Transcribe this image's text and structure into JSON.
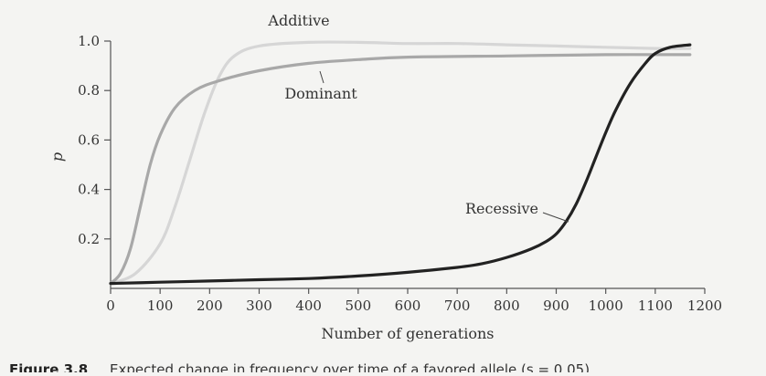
{
  "chart_data": {
    "type": "line",
    "title": "",
    "xlabel": "Number of generations",
    "ylabel": "p",
    "xlim": [
      0,
      1200
    ],
    "ylim": [
      0,
      1.0
    ],
    "x_ticks": [
      "0",
      "100",
      "200",
      "300",
      "400",
      "500",
      "600",
      "700",
      "800",
      "900",
      "1000",
      "1100",
      "1200"
    ],
    "y_ticks": [
      "0.2",
      "0.4",
      "0.6",
      "0.8",
      "1.0"
    ],
    "grid": false,
    "series": [
      {
        "name": "Additive",
        "color": "#d6d6d6",
        "x": [
          0,
          50,
          100,
          130,
          160,
          190,
          220,
          250,
          300,
          400,
          500,
          600,
          700,
          800,
          900,
          1000,
          1100,
          1170
        ],
        "y": [
          0.02,
          0.06,
          0.18,
          0.33,
          0.52,
          0.71,
          0.86,
          0.94,
          0.98,
          0.995,
          0.995,
          0.99,
          0.99,
          0.985,
          0.98,
          0.975,
          0.97,
          0.97
        ]
      },
      {
        "name": "Dominant",
        "color": "#a8a8a8",
        "x": [
          0,
          20,
          40,
          60,
          80,
          100,
          130,
          170,
          220,
          300,
          400,
          500,
          600,
          800,
          1000,
          1170
        ],
        "y": [
          0.02,
          0.06,
          0.16,
          0.33,
          0.5,
          0.62,
          0.73,
          0.8,
          0.84,
          0.88,
          0.91,
          0.925,
          0.935,
          0.94,
          0.945,
          0.945
        ]
      },
      {
        "name": "Recessive",
        "color": "#222222",
        "x": [
          0,
          100,
          200,
          300,
          400,
          500,
          600,
          700,
          750,
          800,
          850,
          880,
          900,
          920,
          940,
          960,
          980,
          1000,
          1020,
          1050,
          1080,
          1100,
          1130,
          1170
        ],
        "y": [
          0.02,
          0.025,
          0.03,
          0.035,
          0.04,
          0.05,
          0.065,
          0.085,
          0.1,
          0.125,
          0.16,
          0.19,
          0.22,
          0.27,
          0.34,
          0.43,
          0.53,
          0.63,
          0.72,
          0.83,
          0.91,
          0.95,
          0.975,
          0.985
        ]
      }
    ],
    "annotations": [
      {
        "text": "Additive"
      },
      {
        "text": "Dominant"
      },
      {
        "text": "Recessive"
      }
    ]
  },
  "caption": {
    "label": "Figure 3.8",
    "text": "Expected change in frequency over time of a favored allele (s = 0.05)"
  }
}
